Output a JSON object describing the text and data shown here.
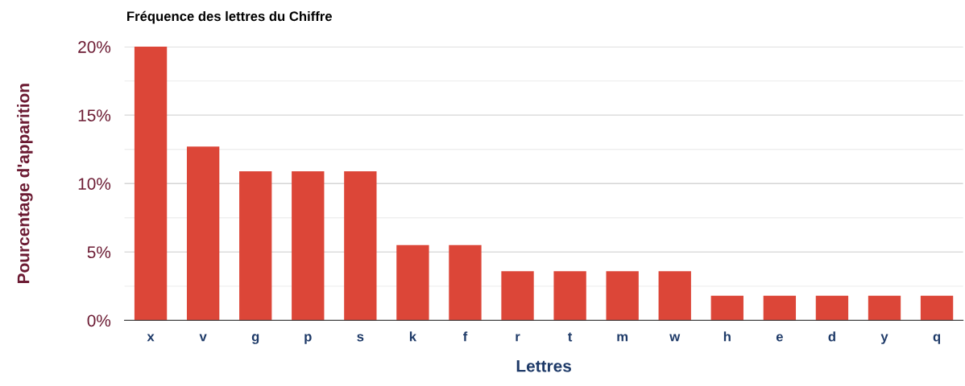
{
  "chart_data": {
    "type": "bar",
    "title": "Fréquence des lettres du Chiffre",
    "xlabel": "Lettres",
    "ylabel": "Pourcentage d'apparition",
    "categories": [
      "x",
      "v",
      "g",
      "p",
      "s",
      "k",
      "f",
      "r",
      "t",
      "m",
      "w",
      "h",
      "e",
      "d",
      "y",
      "q"
    ],
    "values": [
      20,
      12.7,
      10.9,
      10.9,
      10.9,
      5.5,
      5.5,
      3.6,
      3.6,
      3.6,
      3.6,
      1.8,
      1.8,
      1.8,
      1.8,
      1.8
    ],
    "color": "#dc4638",
    "ylim": [
      0,
      20
    ],
    "yticks": [
      {
        "value": 0,
        "label": "0%"
      },
      {
        "value": 2.5,
        "label": null
      },
      {
        "value": 5,
        "label": "5%"
      },
      {
        "value": 7.5,
        "label": null
      },
      {
        "value": 10,
        "label": "10%"
      },
      {
        "value": 12.5,
        "label": null
      },
      {
        "value": 15,
        "label": "15%"
      },
      {
        "value": 17.5,
        "label": null
      },
      {
        "value": 20,
        "label": "20%"
      }
    ],
    "grid": "y",
    "legend": false
  }
}
